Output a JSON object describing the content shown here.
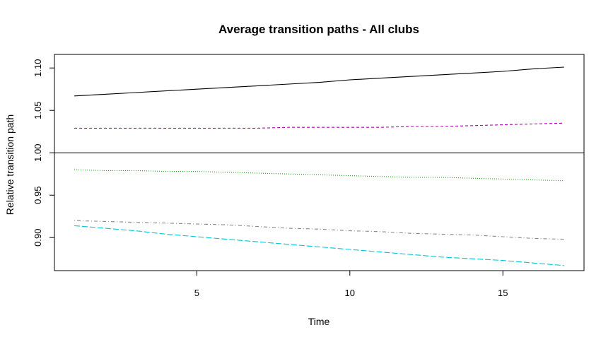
{
  "chart_data": {
    "type": "line",
    "title": "Average transition paths - All clubs",
    "xlabel": "Time",
    "ylabel": "Relative transition path",
    "xlim": [
      0.35,
      17.65
    ],
    "ylim": [
      0.861,
      1.116
    ],
    "xticks": [
      5,
      10,
      15
    ],
    "xtick_labels": [
      "5",
      "10",
      "15"
    ],
    "yticks": [
      0.9,
      0.95,
      1.0,
      1.05,
      1.1
    ],
    "ytick_labels": [
      "0.90",
      "0.95",
      "1.00",
      "1.05",
      "1.10"
    ],
    "reference_line": 1.0,
    "grid": false,
    "legend": false,
    "x": [
      1,
      2,
      3,
      4,
      5,
      6,
      7,
      8,
      9,
      10,
      11,
      12,
      13,
      14,
      15,
      16,
      17
    ],
    "series": [
      {
        "color": "#000000",
        "dash": "solid",
        "values": [
          1.067,
          1.069,
          1.071,
          1.073,
          1.075,
          1.077,
          1.079,
          1.081,
          1.083,
          1.086,
          1.088,
          1.09,
          1.092,
          1.094,
          1.096,
          1.099,
          1.101
        ]
      },
      {
        "color": "#b000b0",
        "dash": "dashed",
        "values": [
          1.029,
          1.029,
          1.029,
          1.029,
          1.029,
          1.029,
          1.029,
          1.03,
          1.03,
          1.03,
          1.03,
          1.031,
          1.031,
          1.032,
          1.033,
          1.034,
          1.035
        ]
      },
      {
        "color": "#1a9a1a",
        "dash": "dotted",
        "values": [
          0.98,
          0.979,
          0.979,
          0.978,
          0.978,
          0.977,
          0.976,
          0.975,
          0.974,
          0.973,
          0.972,
          0.971,
          0.971,
          0.97,
          0.969,
          0.968,
          0.967
        ]
      },
      {
        "color": "#888888",
        "dash": "dotdash",
        "values": [
          0.92,
          0.919,
          0.918,
          0.917,
          0.916,
          0.915,
          0.913,
          0.911,
          0.91,
          0.908,
          0.907,
          0.905,
          0.904,
          0.903,
          0.901,
          0.899,
          0.898
        ]
      },
      {
        "color": "#00c8d8",
        "dash": "longdash",
        "values": [
          0.914,
          0.911,
          0.908,
          0.904,
          0.901,
          0.898,
          0.895,
          0.892,
          0.889,
          0.886,
          0.883,
          0.88,
          0.877,
          0.875,
          0.873,
          0.87,
          0.867
        ]
      }
    ]
  }
}
